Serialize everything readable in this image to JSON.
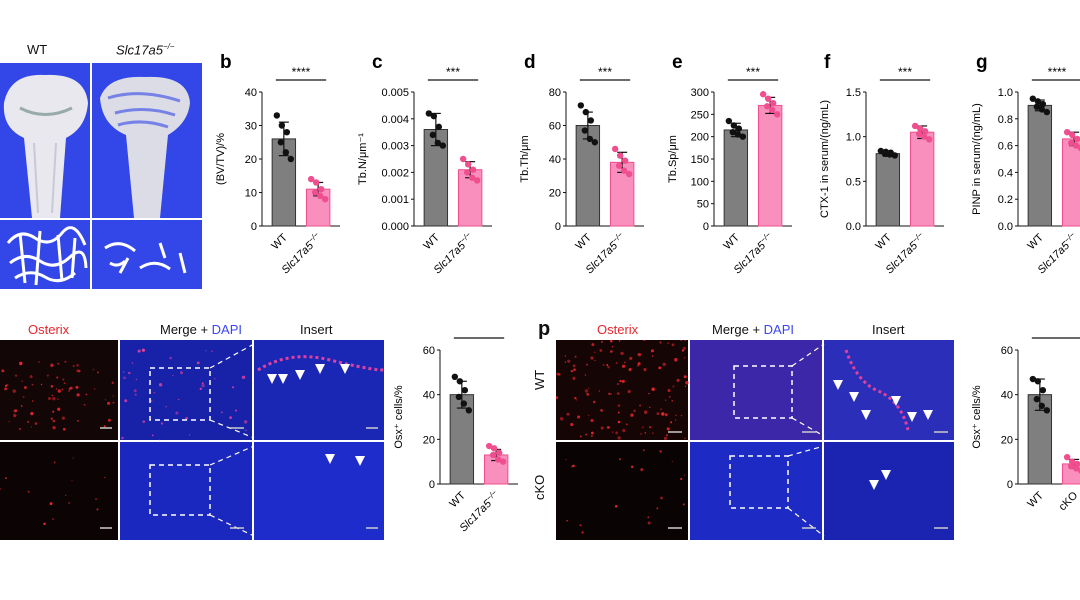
{
  "top_row": {
    "label_wt": "WT",
    "label_ko": "Slc17a5",
    "label_ko_sup": "−/−"
  },
  "charts_top": [
    {
      "panel": "b",
      "type": "bar",
      "ylabel": "(BV/TV)/%",
      "ylim": [
        0,
        40
      ],
      "yticks": [
        "0",
        "10",
        "20",
        "30",
        "40"
      ],
      "categories": [
        "WT",
        "Slc17a5"
      ],
      "category_sup": [
        "",
        "−/−"
      ],
      "values": [
        26,
        11
      ],
      "errors": [
        5,
        2
      ],
      "points": [
        [
          33,
          30,
          28,
          25,
          22,
          20
        ],
        [
          14,
          13,
          11,
          10,
          9,
          8
        ]
      ],
      "significance": "****"
    },
    {
      "panel": "c",
      "type": "bar",
      "ylabel": "Tb.N/μm⁻¹",
      "ylim": [
        0,
        0.005
      ],
      "yticks": [
        "0.000",
        "0.001",
        "0.002",
        "0.003",
        "0.004",
        "0.005"
      ],
      "categories": [
        "WT",
        "Slc17a5"
      ],
      "category_sup": [
        "",
        "−/−"
      ],
      "values": [
        0.0036,
        0.0021
      ],
      "errors": [
        0.0006,
        0.0003
      ],
      "points": [
        [
          0.0042,
          0.0041,
          0.0037,
          0.0034,
          0.0031,
          0.003
        ],
        [
          0.0025,
          0.0023,
          0.0021,
          0.002,
          0.0018,
          0.0017
        ]
      ],
      "significance": "***"
    },
    {
      "panel": "d",
      "type": "bar",
      "ylabel": "Tb.Th/μm",
      "ylim": [
        0,
        80
      ],
      "yticks": [
        "0",
        "20",
        "40",
        "60",
        "80"
      ],
      "categories": [
        "WT",
        "Slc17a5"
      ],
      "category_sup": [
        "",
        "−/−"
      ],
      "values": [
        60,
        38
      ],
      "errors": [
        8,
        6
      ],
      "points": [
        [
          72,
          68,
          63,
          57,
          52,
          50
        ],
        [
          46,
          42,
          39,
          36,
          33,
          31
        ]
      ],
      "significance": "***"
    },
    {
      "panel": "e",
      "type": "bar",
      "ylabel": "Tb.Sp/μm",
      "ylim": [
        0,
        300
      ],
      "yticks": [
        "0",
        "50",
        "100",
        "150",
        "200",
        "250",
        "300"
      ],
      "categories": [
        "WT",
        "Slc17a5"
      ],
      "category_sup": [
        "",
        "−/−"
      ],
      "values": [
        215,
        270
      ],
      "errors": [
        15,
        18
      ],
      "points": [
        [
          235,
          225,
          218,
          210,
          205,
          200
        ],
        [
          295,
          285,
          275,
          268,
          260,
          250
        ]
      ],
      "significance": "***"
    },
    {
      "panel": "f",
      "type": "bar",
      "ylabel": "CTX-1 in serum/(ng/mL)",
      "ylim": [
        0,
        1.5
      ],
      "yticks": [
        "0.0",
        "0.5",
        "1.0",
        "1.5"
      ],
      "categories": [
        "WT",
        "Slc17a5"
      ],
      "category_sup": [
        "",
        "−/−"
      ],
      "values": [
        0.81,
        1.05
      ],
      "errors": [
        0.03,
        0.07
      ],
      "points": [
        [
          0.84,
          0.83,
          0.82,
          0.81,
          0.8,
          0.79
        ],
        [
          1.12,
          1.09,
          1.06,
          1.03,
          1.0,
          0.97
        ]
      ],
      "significance": "***"
    },
    {
      "panel": "g",
      "type": "bar",
      "ylabel": "PINP in serum/(ng/mL)",
      "ylim": [
        0,
        1.0
      ],
      "yticks": [
        "0.0",
        "0.2",
        "0.4",
        "0.6",
        "0.8",
        "1.0"
      ],
      "categories": [
        "WT",
        "Slc17a5"
      ],
      "category_sup": [
        "",
        "−/−"
      ],
      "values": [
        0.9,
        0.65
      ],
      "errors": [
        0.04,
        0.05
      ],
      "points": [
        [
          0.95,
          0.93,
          0.91,
          0.89,
          0.87,
          0.85
        ],
        [
          0.7,
          0.68,
          0.65,
          0.62,
          0.6,
          0.58
        ]
      ],
      "significance": "****"
    }
  ],
  "micro_left": {
    "header_osterix": "Osterix",
    "header_merge": "Merge + ",
    "header_dapi": "DAPI",
    "header_insert": "Insert"
  },
  "chart_left": {
    "type": "bar",
    "ylabel": "Osx⁺ cells/%",
    "ylim": [
      0,
      60
    ],
    "yticks": [
      "0",
      "20",
      "40",
      "60"
    ],
    "categories": [
      "WT",
      "Slc17a5"
    ],
    "category_sup": [
      "",
      "−/−"
    ],
    "values": [
      40,
      13
    ],
    "errors": [
      6,
      2.5
    ],
    "points": [
      [
        48,
        46,
        42,
        39,
        36,
        33
      ],
      [
        17,
        16,
        14,
        13,
        11,
        10
      ]
    ],
    "significance": "****"
  },
  "micro_right": {
    "panel": "p",
    "header_osterix": "Osterix",
    "header_merge": "Merge + ",
    "header_dapi": "DAPI",
    "header_insert": "Insert",
    "row_wt": "WT",
    "row_cko": "cKO"
  },
  "chart_right": {
    "type": "bar",
    "ylabel": "Osx⁺ cells/%",
    "ylim": [
      0,
      60
    ],
    "yticks": [
      "0",
      "20",
      "40",
      "60"
    ],
    "categories": [
      "WT",
      "cKO"
    ],
    "category_sup": [
      "",
      ""
    ],
    "values": [
      40,
      9
    ],
    "errors": [
      7,
      2
    ],
    "points": [
      [
        47,
        46,
        42,
        38,
        35,
        33
      ],
      [
        12,
        10,
        9,
        8,
        7,
        6
      ]
    ],
    "significance": "***"
  },
  "colors": {
    "wt_bar": "#7f7f7f",
    "ko_bar": "#f98fbd",
    "ko_point": "#ef4f8e",
    "bone_bg": "#3346e8",
    "merge_bg": "#1722a8",
    "osterix_red": "#e8262d",
    "dapi_blue": "#3b48f2"
  }
}
